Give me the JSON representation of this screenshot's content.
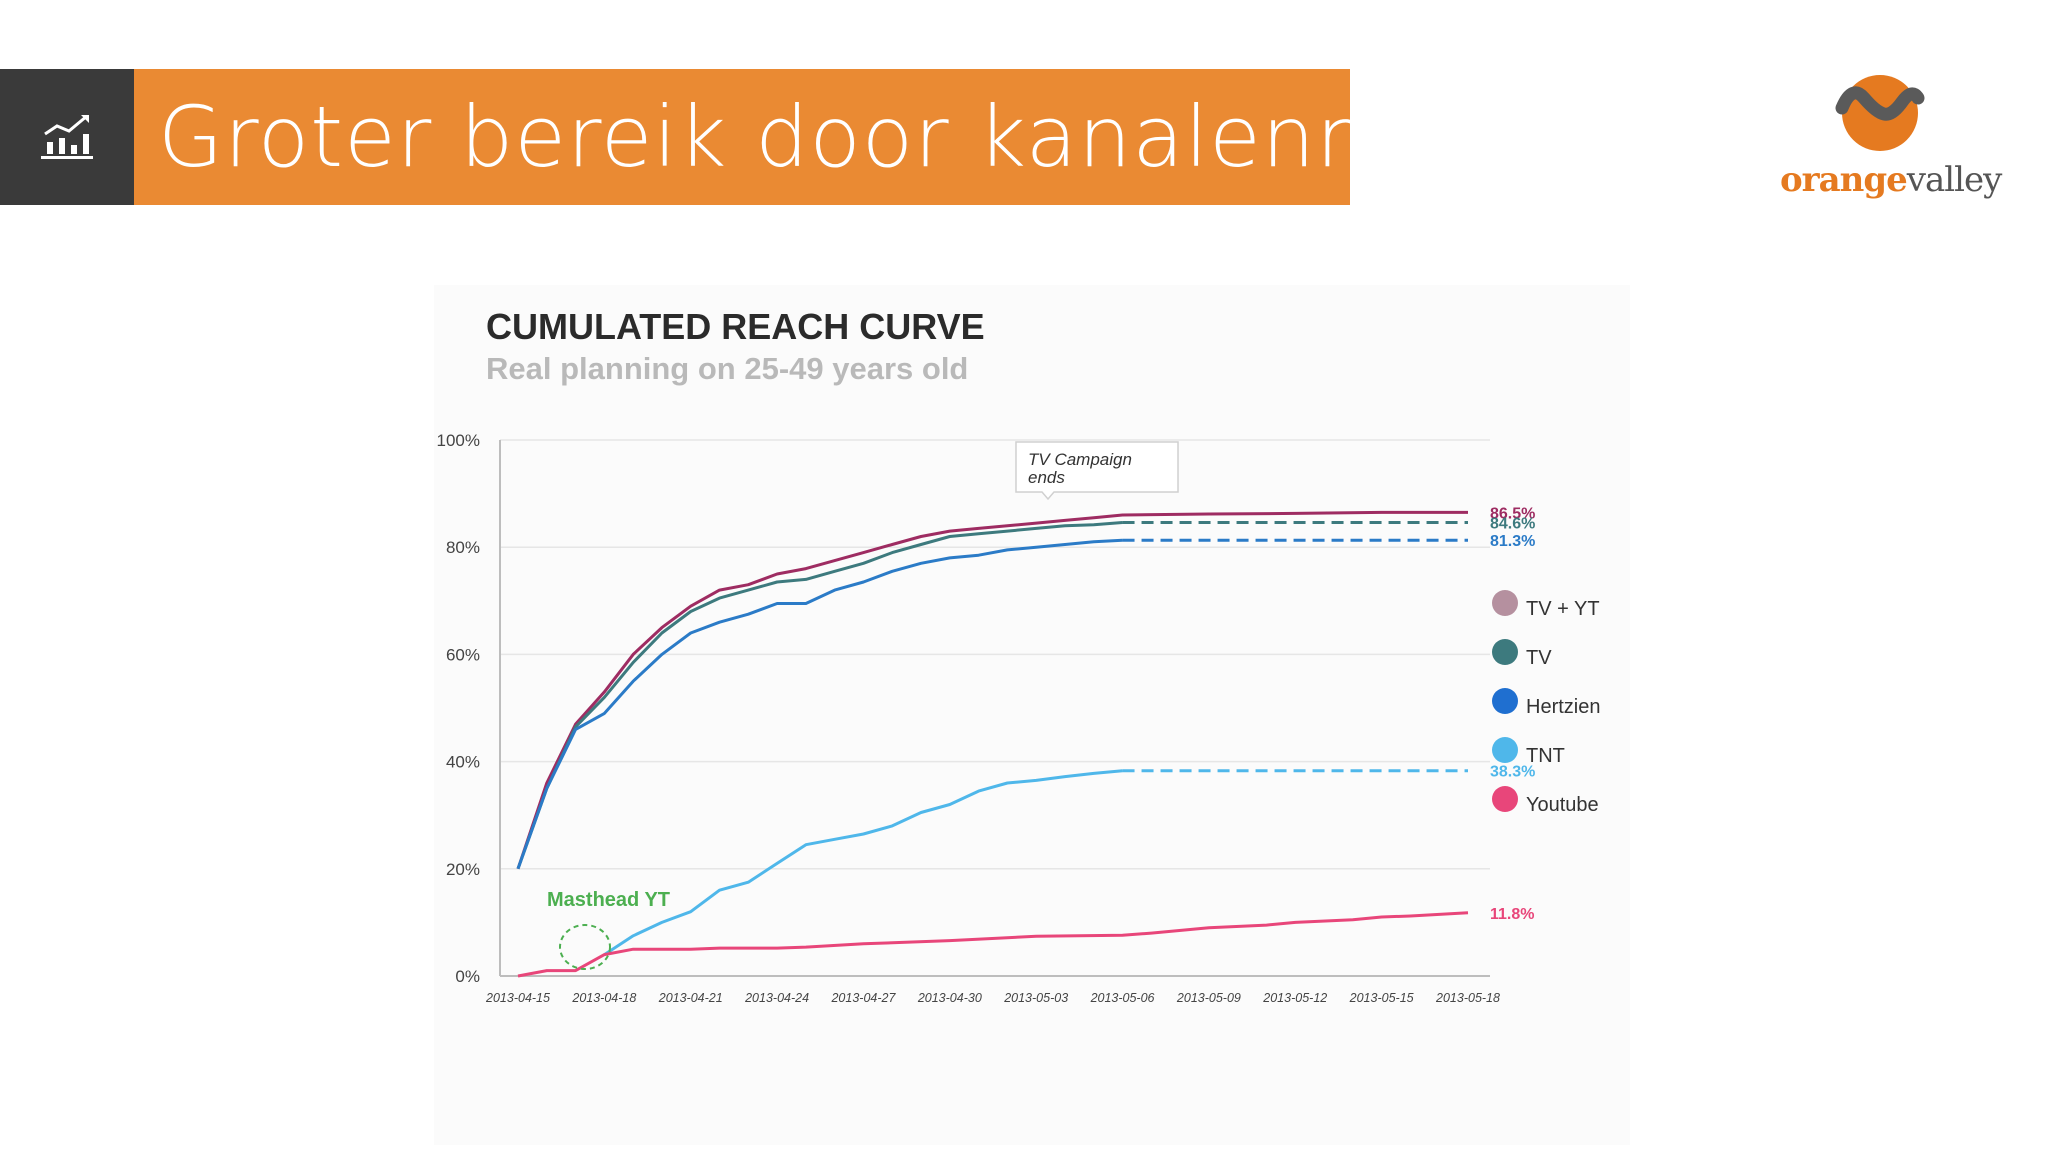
{
  "header": {
    "title": "Groter bereik door kanalenmix",
    "icon": "bar-chart-trend-icon",
    "colors": {
      "title_bar": "#ea8a33",
      "icon_box": "#3a3a3a"
    }
  },
  "logo": {
    "word_part1": "orange",
    "word_part2": "valley",
    "icon": "orange-circle-wave-icon"
  },
  "chart_data": {
    "type": "line",
    "title": "CUMULATED REACH CURVE",
    "subtitle": "Real planning on 25-49 years old",
    "x_ticks": [
      "2013-04-15",
      "2013-04-18",
      "2013-04-21",
      "2013-04-24",
      "2013-04-27",
      "2013-04-30",
      "2013-05-03",
      "2013-05-06",
      "2013-05-09",
      "2013-05-12",
      "2013-05-15",
      "2013-05-18"
    ],
    "y_ticks": [
      "0%",
      "20%",
      "40%",
      "60%",
      "80%",
      "100%"
    ],
    "ylim": [
      0,
      100
    ],
    "grid": true,
    "legend_position": "right",
    "annotation": {
      "text_line1": "TV Campaign",
      "text_line2": "ends",
      "date": "2013-05-06"
    },
    "masthead_label": "Masthead YT",
    "series": [
      {
        "name": "TV + YT",
        "color": "#9e2c62",
        "legend_color": "#b5909f",
        "end_label": "86.5%",
        "points": [
          [
            "2013-04-15",
            20
          ],
          [
            "2013-04-16",
            36
          ],
          [
            "2013-04-17",
            47
          ],
          [
            "2013-04-18",
            53
          ],
          [
            "2013-04-19",
            60
          ],
          [
            "2013-04-20",
            65
          ],
          [
            "2013-04-21",
            69
          ],
          [
            "2013-04-22",
            72
          ],
          [
            "2013-04-23",
            73
          ],
          [
            "2013-04-24",
            75
          ],
          [
            "2013-04-25",
            76
          ],
          [
            "2013-04-26",
            77.5
          ],
          [
            "2013-04-27",
            79
          ],
          [
            "2013-04-28",
            80.5
          ],
          [
            "2013-04-29",
            82
          ],
          [
            "2013-04-30",
            83
          ],
          [
            "2013-05-01",
            83.5
          ],
          [
            "2013-05-02",
            84
          ],
          [
            "2013-05-03",
            84.5
          ],
          [
            "2013-05-04",
            85
          ],
          [
            "2013-05-05",
            85.5
          ],
          [
            "2013-05-06",
            86
          ],
          [
            "2013-05-09",
            86.2
          ],
          [
            "2013-05-12",
            86.3
          ],
          [
            "2013-05-15",
            86.5
          ],
          [
            "2013-05-18",
            86.5
          ]
        ]
      },
      {
        "name": "TV",
        "color": "#3d7a7e",
        "legend_color": "#3d7a7e",
        "end_label": "84.6%",
        "points": [
          [
            "2013-04-15",
            20
          ],
          [
            "2013-04-16",
            35
          ],
          [
            "2013-04-17",
            46.5
          ],
          [
            "2013-04-18",
            52
          ],
          [
            "2013-04-19",
            58.5
          ],
          [
            "2013-04-20",
            64
          ],
          [
            "2013-04-21",
            68
          ],
          [
            "2013-04-22",
            70.5
          ],
          [
            "2013-04-23",
            72
          ],
          [
            "2013-04-24",
            73.5
          ],
          [
            "2013-04-25",
            74
          ],
          [
            "2013-04-26",
            75.5
          ],
          [
            "2013-04-27",
            77
          ],
          [
            "2013-04-28",
            79
          ],
          [
            "2013-04-29",
            80.5
          ],
          [
            "2013-04-30",
            82
          ],
          [
            "2013-05-01",
            82.5
          ],
          [
            "2013-05-02",
            83
          ],
          [
            "2013-05-03",
            83.5
          ],
          [
            "2013-05-04",
            84
          ],
          [
            "2013-05-05",
            84.2
          ],
          [
            "2013-05-06",
            84.6
          ]
        ],
        "dashed_to": "2013-05-18"
      },
      {
        "name": "Hertzien",
        "color": "#2b7bc7",
        "legend_color": "#1f6fd0",
        "end_label": "81.3%",
        "points": [
          [
            "2013-04-15",
            20
          ],
          [
            "2013-04-16",
            35
          ],
          [
            "2013-04-17",
            46
          ],
          [
            "2013-04-18",
            49
          ],
          [
            "2013-04-19",
            55
          ],
          [
            "2013-04-20",
            60
          ],
          [
            "2013-04-21",
            64
          ],
          [
            "2013-04-22",
            66
          ],
          [
            "2013-04-23",
            67.5
          ],
          [
            "2013-04-24",
            69.5
          ],
          [
            "2013-04-25",
            69.5
          ],
          [
            "2013-04-26",
            72
          ],
          [
            "2013-04-27",
            73.5
          ],
          [
            "2013-04-28",
            75.5
          ],
          [
            "2013-04-29",
            77
          ],
          [
            "2013-04-30",
            78
          ],
          [
            "2013-05-01",
            78.5
          ],
          [
            "2013-05-02",
            79.5
          ],
          [
            "2013-05-03",
            80
          ],
          [
            "2013-05-04",
            80.5
          ],
          [
            "2013-05-05",
            81
          ],
          [
            "2013-05-06",
            81.3
          ]
        ],
        "dashed_to": "2013-05-18"
      },
      {
        "name": "TNT",
        "color": "#4fb7ea",
        "legend_color": "#4fb7ea",
        "end_label": "38.3%",
        "points": [
          [
            "2013-04-18",
            4
          ],
          [
            "2013-04-19",
            7.5
          ],
          [
            "2013-04-20",
            10
          ],
          [
            "2013-04-21",
            12
          ],
          [
            "2013-04-22",
            16
          ],
          [
            "2013-04-23",
            17.5
          ],
          [
            "2013-04-24",
            21
          ],
          [
            "2013-04-25",
            24.5
          ],
          [
            "2013-04-26",
            25.5
          ],
          [
            "2013-04-27",
            26.5
          ],
          [
            "2013-04-28",
            28
          ],
          [
            "2013-04-29",
            30.5
          ],
          [
            "2013-04-30",
            32
          ],
          [
            "2013-05-01",
            34.5
          ],
          [
            "2013-05-02",
            36
          ],
          [
            "2013-05-03",
            36.5
          ],
          [
            "2013-05-04",
            37.2
          ],
          [
            "2013-05-05",
            37.8
          ],
          [
            "2013-05-06",
            38.3
          ]
        ],
        "dashed_to": "2013-05-18"
      },
      {
        "name": "Youtube",
        "color": "#e8467a",
        "legend_color": "#e8467a",
        "end_label": "11.8%",
        "points": [
          [
            "2013-04-15",
            0
          ],
          [
            "2013-04-16",
            1
          ],
          [
            "2013-04-17",
            1
          ],
          [
            "2013-04-18",
            4
          ],
          [
            "2013-04-19",
            5
          ],
          [
            "2013-04-21",
            5
          ],
          [
            "2013-04-22",
            5.2
          ],
          [
            "2013-04-24",
            5.2
          ],
          [
            "2013-04-25",
            5.4
          ],
          [
            "2013-04-27",
            6
          ],
          [
            "2013-04-30",
            6.6
          ],
          [
            "2013-05-03",
            7.4
          ],
          [
            "2013-05-06",
            7.6
          ],
          [
            "2013-05-07",
            8
          ],
          [
            "2013-05-09",
            9
          ],
          [
            "2013-05-11",
            9.5
          ],
          [
            "2013-05-12",
            10
          ],
          [
            "2013-05-14",
            10.5
          ],
          [
            "2013-05-15",
            11
          ],
          [
            "2013-05-16",
            11.2
          ],
          [
            "2013-05-18",
            11.8
          ]
        ]
      }
    ]
  }
}
